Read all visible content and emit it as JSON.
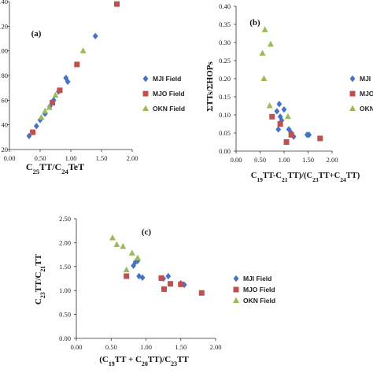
{
  "colors": {
    "MJI": "#4472c4",
    "MJO": "#c0504d",
    "OKN": "#9bbb59",
    "axis": "#333333"
  },
  "chart_data": [
    {
      "panel": "a",
      "type": "scatter",
      "label": "(a)",
      "xlabel": "C25TT/C24TeT",
      "ylabel": "",
      "xlim": [
        0,
        2
      ],
      "ylim": [
        20,
        140
      ],
      "xticks": [
        "0.00",
        "0.50",
        "1.00",
        "1.50",
        "2.00"
      ],
      "yticks": [
        "20",
        "40",
        "60",
        "80",
        "100",
        "120",
        "140"
      ],
      "legend_position": "right",
      "series": [
        {
          "name": "MJI Field",
          "marker": "diamond",
          "color": "#4472c4",
          "points": [
            [
              0.32,
              31
            ],
            [
              0.44,
              39
            ],
            [
              0.5,
              44
            ],
            [
              0.58,
              49
            ],
            [
              0.66,
              55
            ],
            [
              0.72,
              60
            ],
            [
              0.8,
              67
            ],
            [
              0.92,
              78
            ],
            [
              0.95,
              75
            ],
            [
              1.4,
              112
            ]
          ]
        },
        {
          "name": "MJO Field",
          "marker": "square",
          "color": "#c0504d",
          "points": [
            [
              0.38,
              34
            ],
            [
              0.7,
              58
            ],
            [
              0.82,
              68
            ],
            [
              1.1,
              89
            ],
            [
              1.75,
              138
            ]
          ]
        },
        {
          "name": "OKN Field",
          "marker": "triangle",
          "color": "#9bbb59",
          "points": [
            [
              0.52,
              46
            ],
            [
              0.58,
              51
            ],
            [
              0.65,
              54
            ],
            [
              0.75,
              64
            ],
            [
              1.2,
              100
            ]
          ]
        }
      ]
    },
    {
      "panel": "b",
      "type": "scatter",
      "label": "(b)",
      "xlabel": "C19TT-C21TT)/(C23TT+C24TT)",
      "ylabel": "ΣTTs/ΣHOPs",
      "xlim": [
        0,
        2
      ],
      "ylim": [
        0,
        0.4
      ],
      "xticks": [
        "0.00",
        "0.50",
        "1.00",
        "1.50",
        "2.00"
      ],
      "yticks": [
        "0.00",
        "0.05",
        "0.10",
        "0.15",
        "0.20",
        "0.25",
        "0.30",
        "0.35",
        "0.40"
      ],
      "legend_position": "right",
      "series": [
        {
          "name": "MJI Field",
          "marker": "diamond",
          "color": "#4472c4",
          "points": [
            [
              0.9,
              0.13
            ],
            [
              0.85,
              0.11
            ],
            [
              0.92,
              0.095
            ],
            [
              1.0,
              0.115
            ],
            [
              0.95,
              0.085
            ],
            [
              0.88,
              0.06
            ],
            [
              1.1,
              0.06
            ],
            [
              1.15,
              0.05
            ],
            [
              1.2,
              0.04
            ],
            [
              1.48,
              0.045
            ],
            [
              1.52,
              0.045
            ]
          ]
        },
        {
          "name": "MJO Field",
          "marker": "square",
          "color": "#c0504d",
          "points": [
            [
              0.75,
              0.095
            ],
            [
              0.92,
              0.075
            ],
            [
              1.05,
              0.025
            ],
            [
              1.15,
              0.045
            ],
            [
              1.75,
              0.035
            ]
          ]
        },
        {
          "name": "OKN Field",
          "marker": "triangle",
          "color": "#9bbb59",
          "points": [
            [
              0.6,
              0.335
            ],
            [
              0.72,
              0.295
            ],
            [
              0.55,
              0.27
            ],
            [
              0.58,
              0.2
            ],
            [
              0.7,
              0.125
            ],
            [
              1.08,
              0.095
            ]
          ]
        }
      ]
    },
    {
      "panel": "c",
      "type": "scatter",
      "label": "(c)",
      "xlabel": "(C19TT + C20TT)/C23TT",
      "ylabel": "C23TT/C21TT",
      "xlim": [
        0,
        2
      ],
      "ylim": [
        0,
        2.5
      ],
      "xticks": [
        "0.00",
        "0.50",
        "1.00",
        "1.50",
        "2.00"
      ],
      "yticks": [
        "0.00",
        "0.50",
        "1.00",
        "1.50",
        "2.00",
        "2.50"
      ],
      "legend_position": "right",
      "series": [
        {
          "name": "MJI Field",
          "marker": "diamond",
          "color": "#4472c4",
          "points": [
            [
              0.88,
              1.62
            ],
            [
              0.82,
              1.52
            ],
            [
              0.85,
              1.6
            ],
            [
              0.9,
              1.3
            ],
            [
              0.95,
              1.27
            ],
            [
              1.25,
              1.25
            ],
            [
              1.32,
              1.3
            ],
            [
              1.5,
              1.15
            ],
            [
              1.55,
              1.12
            ]
          ]
        },
        {
          "name": "MJO Field",
          "marker": "square",
          "color": "#c0504d",
          "points": [
            [
              0.72,
              1.3
            ],
            [
              1.22,
              1.26
            ],
            [
              1.26,
              1.03
            ],
            [
              1.35,
              1.14
            ],
            [
              1.5,
              1.13
            ],
            [
              1.8,
              0.95
            ]
          ]
        },
        {
          "name": "OKN Field",
          "marker": "triangle",
          "color": "#9bbb59",
          "points": [
            [
              0.52,
              2.1
            ],
            [
              0.58,
              1.96
            ],
            [
              0.67,
              1.92
            ],
            [
              0.8,
              1.78
            ],
            [
              0.72,
              1.43
            ],
            [
              0.88,
              1.68
            ]
          ]
        }
      ]
    }
  ]
}
